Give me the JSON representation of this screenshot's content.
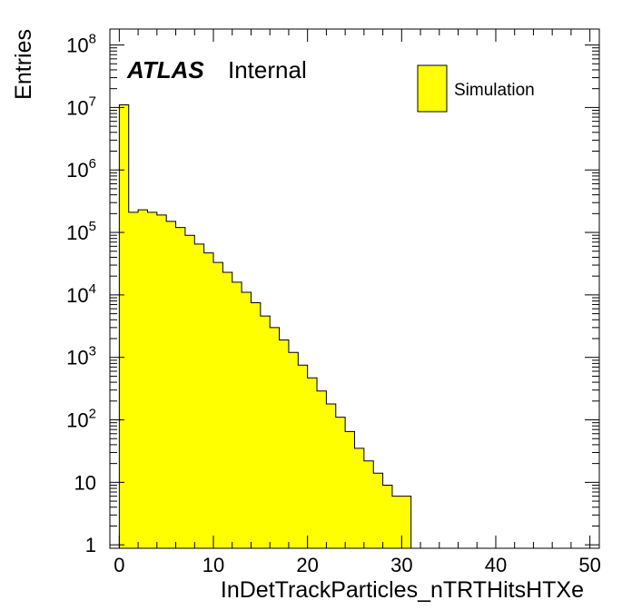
{
  "chart_data": {
    "type": "bar",
    "title": "",
    "xlabel": "InDetTrackParticles_nTRTHitsHTXe",
    "ylabel": "Entries",
    "xlim": [
      -1,
      51
    ],
    "ylim": [
      0.88,
      180000000
    ],
    "log_y": true,
    "bin_width": 1,
    "bin_low_edges": [
      -1,
      0,
      1,
      2,
      3,
      4,
      5,
      6,
      7,
      8,
      9,
      10,
      11,
      12,
      13,
      14,
      15,
      16,
      17,
      18,
      19,
      20,
      21,
      22,
      23,
      24,
      25,
      26,
      27,
      28,
      29,
      30
    ],
    "values": [
      0,
      11000000,
      210000,
      230000,
      210000,
      190000,
      150000,
      120000,
      90000,
      65000,
      47000,
      33000,
      23000,
      16000,
      11000,
      7500,
      4600,
      3000,
      1900,
      1200,
      750,
      470,
      290,
      180,
      110,
      65,
      35,
      22,
      14,
      9,
      6,
      6
    ],
    "x_ticks": [
      "0",
      "10",
      "20",
      "30",
      "40",
      "50"
    ],
    "x_tick_values": [
      0,
      10,
      20,
      30,
      40,
      50
    ],
    "y_ticks": [
      {
        "value": 1,
        "base": "1",
        "exp": ""
      },
      {
        "value": 10,
        "base": "10",
        "exp": ""
      },
      {
        "value": 100,
        "base": "10",
        "exp": "2"
      },
      {
        "value": 1000,
        "base": "10",
        "exp": "3"
      },
      {
        "value": 10000,
        "base": "10",
        "exp": "4"
      },
      {
        "value": 100000,
        "base": "10",
        "exp": "5"
      },
      {
        "value": 1000000,
        "base": "10",
        "exp": "6"
      },
      {
        "value": 10000000,
        "base": "10",
        "exp": "7"
      },
      {
        "value": 100000000,
        "base": "10",
        "exp": "8"
      }
    ],
    "series": [
      {
        "name": "Simulation",
        "color": "#ffff00",
        "line_color": "#000000"
      }
    ],
    "legend_position": "top-right",
    "grid": false
  },
  "annotation": {
    "experiment": "ATLAS",
    "status": "Internal"
  },
  "legend": {
    "entries": [
      "Simulation"
    ]
  }
}
